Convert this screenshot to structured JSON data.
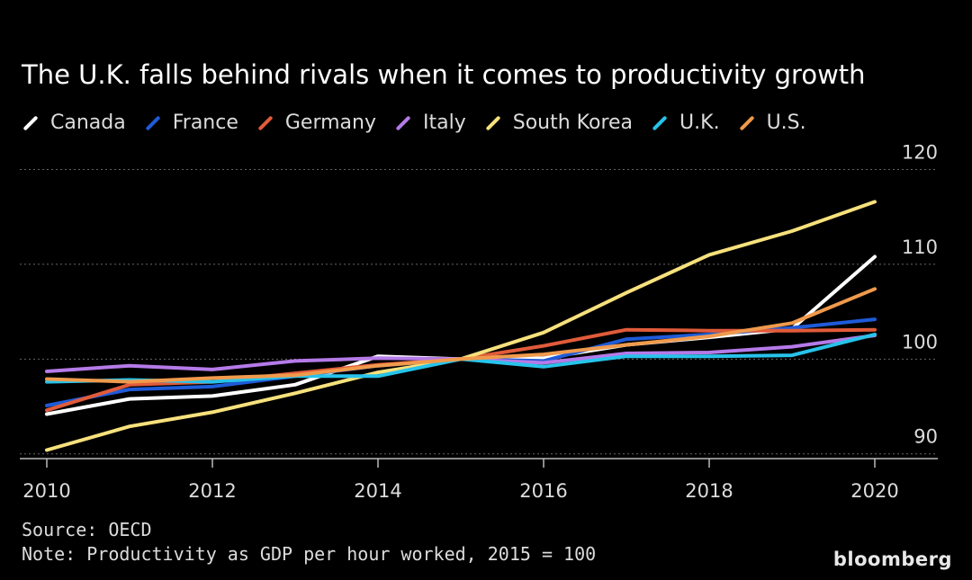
{
  "chart_data": {
    "type": "line",
    "title": "The U.K. falls behind rivals when it comes to productivity growth",
    "xlabel": "",
    "ylabel": "",
    "x": [
      2010,
      2011,
      2012,
      2013,
      2014,
      2015,
      2016,
      2017,
      2018,
      2019,
      2020
    ],
    "x_ticks": [
      2010,
      2012,
      2014,
      2016,
      2018,
      2020
    ],
    "y_ticks": [
      90,
      100,
      110,
      120
    ],
    "xlim": [
      2010,
      2020
    ],
    "ylim": [
      89.5,
      121
    ],
    "grid": true,
    "legend_placement": "top-left",
    "series": [
      {
        "name": "Canada",
        "color": "#ffffff",
        "values": [
          94.2,
          95.8,
          96.1,
          97.3,
          100.3,
          100.0,
          100.1,
          101.5,
          102.3,
          103.2,
          110.8
        ]
      },
      {
        "name": "France",
        "color": "#1f5bd8",
        "values": [
          95.1,
          96.8,
          97.1,
          98.2,
          99.3,
          100.0,
          99.8,
          102.1,
          102.6,
          103.3,
          104.2
        ]
      },
      {
        "name": "Germany",
        "color": "#e15b3a",
        "values": [
          94.6,
          97.3,
          97.6,
          98.5,
          99.4,
          100.0,
          101.4,
          103.1,
          103.0,
          103.0,
          103.1
        ]
      },
      {
        "name": "Italy",
        "color": "#b57ae8",
        "values": [
          98.7,
          99.3,
          98.9,
          99.8,
          100.1,
          100.0,
          99.6,
          100.6,
          100.7,
          101.3,
          102.5
        ]
      },
      {
        "name": "South Korea",
        "color": "#f7e17c",
        "values": [
          90.4,
          92.9,
          94.4,
          96.4,
          98.6,
          100.0,
          102.8,
          107.0,
          111.0,
          113.5,
          116.6
        ]
      },
      {
        "name": "U.K.",
        "color": "#27c3ea",
        "values": [
          97.6,
          97.8,
          97.6,
          98.2,
          98.2,
          100.0,
          99.2,
          100.3,
          100.3,
          100.4,
          102.6
        ]
      },
      {
        "name": "U.S.",
        "color": "#f09a4c",
        "values": [
          97.9,
          97.6,
          98.0,
          98.3,
          99.3,
          100.0,
          100.5,
          101.5,
          102.4,
          103.8,
          107.4
        ]
      }
    ],
    "source": "Source: OECD",
    "note": "Note: Productivity as GDP per hour worked, 2015 = 100"
  },
  "brand": "bloomberg",
  "colors": {
    "background": "#000000",
    "gridline": "#666666",
    "text": "#dcdcdc"
  }
}
